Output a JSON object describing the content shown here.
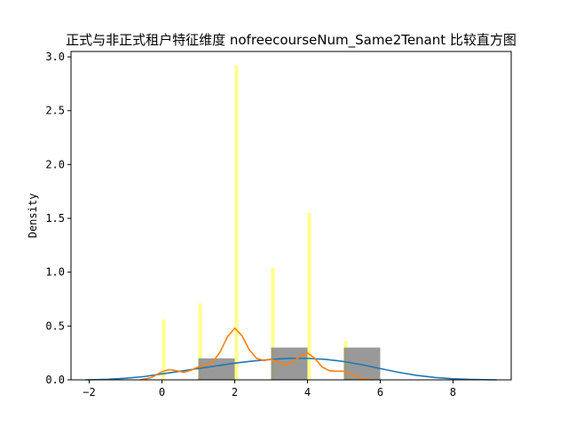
{
  "chart_data": {
    "type": "histogram",
    "title": "正式与非正式租户特征维度 nofreecourseNum_Same2Tenant 比较直方图",
    "xlabel": "",
    "ylabel": "Density",
    "xlim": [
      -2.5,
      9.6
    ],
    "ylim": [
      0,
      3.05
    ],
    "xticks": [
      -2,
      0,
      2,
      4,
      6,
      8
    ],
    "yticks": [
      0.0,
      0.5,
      1.0,
      1.5,
      2.0,
      2.5,
      3.0
    ],
    "grid": false,
    "legend": "none",
    "series": [
      {
        "kind": "bars",
        "color": "#ffff66",
        "opacity": 0.75,
        "bars": [
          {
            "x0": 0.0,
            "x1": 0.1,
            "value": 0.56
          },
          {
            "x0": 1.0,
            "x1": 1.1,
            "value": 0.71
          },
          {
            "x0": 2.0,
            "x1": 2.1,
            "value": 2.92
          },
          {
            "x0": 3.0,
            "x1": 3.1,
            "value": 1.04
          },
          {
            "x0": 4.0,
            "x1": 4.1,
            "value": 1.55
          },
          {
            "x0": 5.0,
            "x1": 5.1,
            "value": 0.36
          }
        ]
      },
      {
        "kind": "bars",
        "color": "#808080",
        "opacity": 0.8,
        "bars": [
          {
            "x0": 1.0,
            "x1": 2.0,
            "value": 0.2
          },
          {
            "x0": 2.0,
            "x1": 3.0,
            "value": 0.0
          },
          {
            "x0": 3.0,
            "x1": 4.0,
            "value": 0.3
          },
          {
            "x0": 4.0,
            "x1": 5.0,
            "value": 0.0
          },
          {
            "x0": 5.0,
            "x1": 6.0,
            "value": 0.3
          }
        ]
      },
      {
        "kind": "line",
        "color": "#1f77b4",
        "points": [
          [
            -2.1,
            0.0
          ],
          [
            -1.5,
            0.005
          ],
          [
            -1.0,
            0.015
          ],
          [
            -0.5,
            0.03
          ],
          [
            0.0,
            0.055
          ],
          [
            0.5,
            0.08
          ],
          [
            1.0,
            0.105
          ],
          [
            1.5,
            0.13
          ],
          [
            2.0,
            0.155
          ],
          [
            2.5,
            0.175
          ],
          [
            3.0,
            0.19
          ],
          [
            3.5,
            0.2
          ],
          [
            4.0,
            0.2
          ],
          [
            4.5,
            0.19
          ],
          [
            5.0,
            0.17
          ],
          [
            5.5,
            0.14
          ],
          [
            6.0,
            0.105
          ],
          [
            6.5,
            0.07
          ],
          [
            7.0,
            0.042
          ],
          [
            7.5,
            0.022
          ],
          [
            8.0,
            0.01
          ],
          [
            8.5,
            0.004
          ],
          [
            9.0,
            0.001
          ],
          [
            9.2,
            0.0
          ]
        ]
      },
      {
        "kind": "line",
        "color": "#ff7f0e",
        "points": [
          [
            -0.6,
            0.0
          ],
          [
            -0.3,
            0.02
          ],
          [
            0.0,
            0.075
          ],
          [
            0.2,
            0.095
          ],
          [
            0.4,
            0.085
          ],
          [
            0.6,
            0.07
          ],
          [
            0.8,
            0.09
          ],
          [
            1.0,
            0.12
          ],
          [
            1.2,
            0.135
          ],
          [
            1.4,
            0.165
          ],
          [
            1.6,
            0.26
          ],
          [
            1.8,
            0.4
          ],
          [
            2.0,
            0.48
          ],
          [
            2.2,
            0.41
          ],
          [
            2.4,
            0.28
          ],
          [
            2.6,
            0.2
          ],
          [
            2.8,
            0.18
          ],
          [
            3.0,
            0.19
          ],
          [
            3.2,
            0.17
          ],
          [
            3.4,
            0.135
          ],
          [
            3.6,
            0.17
          ],
          [
            3.8,
            0.22
          ],
          [
            4.0,
            0.25
          ],
          [
            4.2,
            0.2
          ],
          [
            4.4,
            0.12
          ],
          [
            4.6,
            0.085
          ],
          [
            4.8,
            0.08
          ],
          [
            5.0,
            0.08
          ],
          [
            5.2,
            0.05
          ],
          [
            5.4,
            0.02
          ],
          [
            5.6,
            0.005
          ],
          [
            5.8,
            0.0
          ]
        ]
      }
    ]
  }
}
